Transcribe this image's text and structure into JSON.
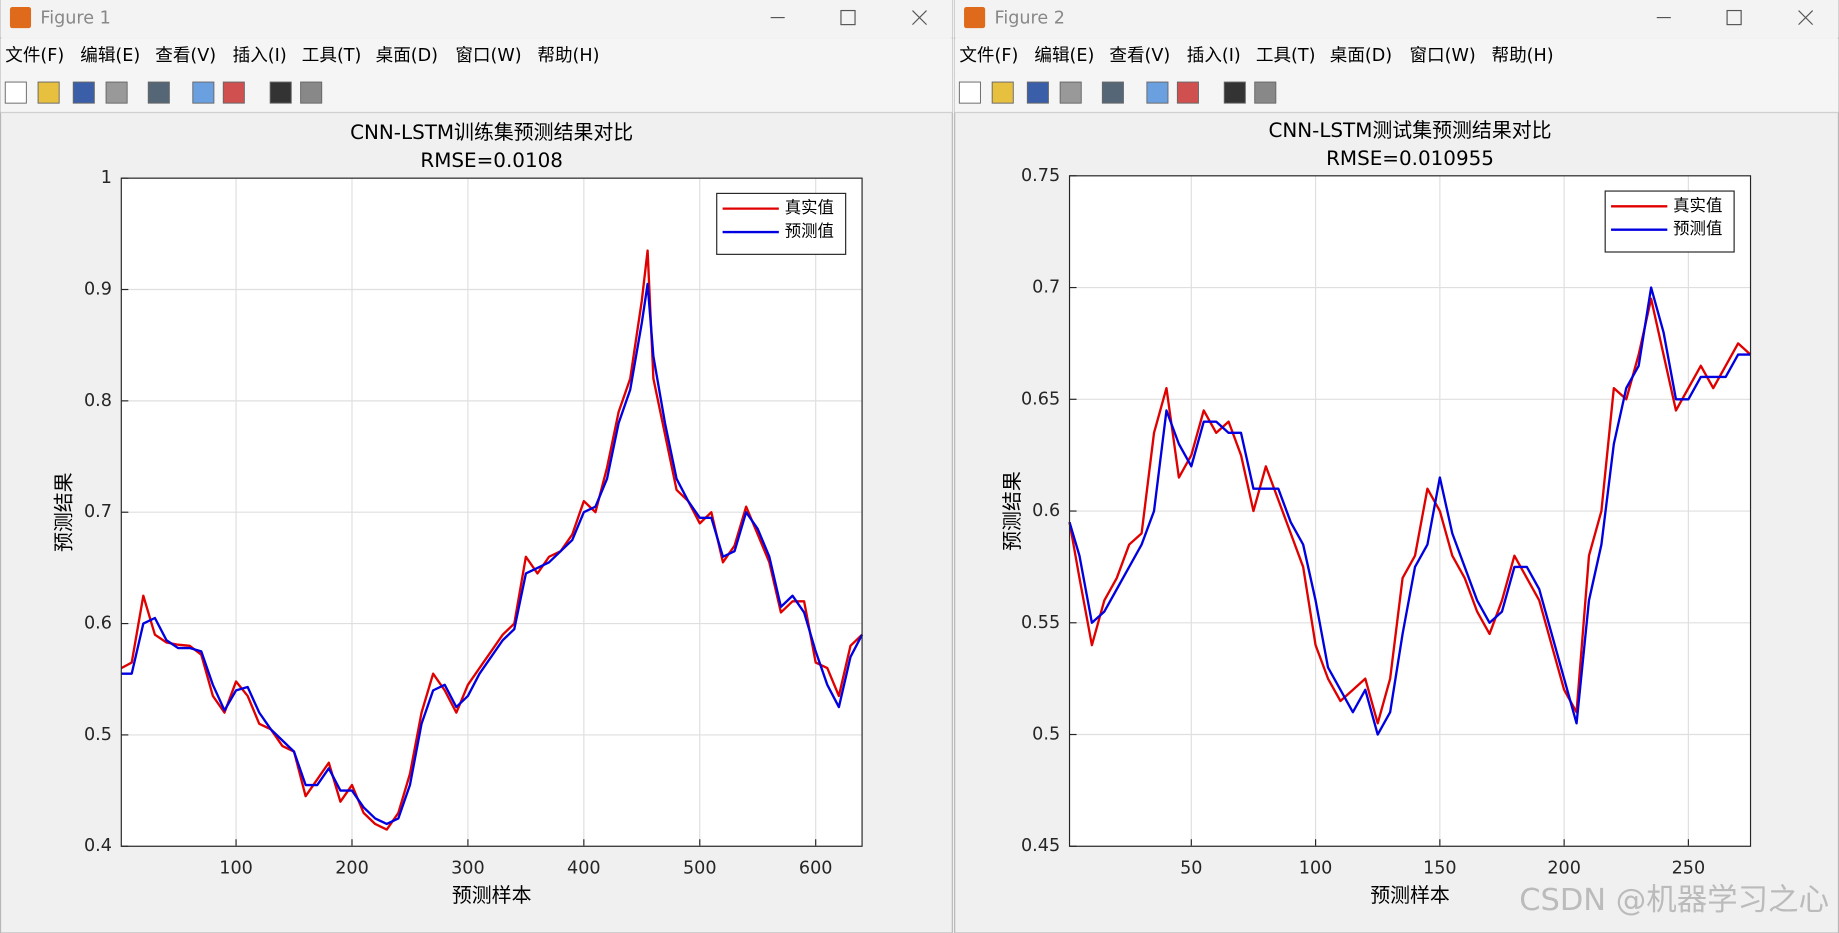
{
  "windows": [
    {
      "title": "Figure 1",
      "menu": [
        "文件(F)",
        "编辑(E)",
        "查看(V)",
        "插入(I)",
        "工具(T)",
        "桌面(D)",
        "窗口(W)",
        "帮助(H)"
      ]
    },
    {
      "title": "Figure 2",
      "menu": [
        "文件(F)",
        "编辑(E)",
        "查看(V)",
        "插入(I)",
        "工具(T)",
        "桌面(D)",
        "窗口(W)",
        "帮助(H)"
      ]
    }
  ],
  "chart_data": [
    {
      "type": "line",
      "title": "CNN-LSTM训练集预测结果对比",
      "subtitle": "RMSE=0.0108",
      "x_label": "预测样本",
      "y_label": "预测结果",
      "x": [
        1,
        10,
        20,
        30,
        40,
        50,
        60,
        70,
        80,
        90,
        100,
        110,
        120,
        130,
        140,
        150,
        160,
        170,
        180,
        190,
        200,
        210,
        220,
        230,
        240,
        250,
        260,
        270,
        280,
        290,
        300,
        310,
        320,
        330,
        340,
        350,
        360,
        370,
        380,
        390,
        400,
        410,
        420,
        430,
        440,
        450,
        455,
        460,
        470,
        480,
        490,
        500,
        510,
        520,
        530,
        540,
        550,
        560,
        570,
        580,
        590,
        600,
        610,
        620,
        630,
        640
      ],
      "series": [
        {
          "name": "真实值",
          "color": "#e00000",
          "values": [
            0.56,
            0.565,
            0.625,
            0.59,
            0.583,
            0.581,
            0.58,
            0.572,
            0.535,
            0.52,
            0.548,
            0.535,
            0.51,
            0.505,
            0.49,
            0.485,
            0.445,
            0.46,
            0.475,
            0.44,
            0.455,
            0.43,
            0.42,
            0.415,
            0.43,
            0.465,
            0.52,
            0.555,
            0.54,
            0.52,
            0.545,
            0.56,
            0.575,
            0.59,
            0.6,
            0.66,
            0.645,
            0.66,
            0.665,
            0.68,
            0.71,
            0.7,
            0.74,
            0.79,
            0.82,
            0.89,
            0.935,
            0.82,
            0.77,
            0.72,
            0.71,
            0.69,
            0.7,
            0.655,
            0.67,
            0.705,
            0.68,
            0.655,
            0.61,
            0.62,
            0.62,
            0.565,
            0.56,
            0.535,
            0.58,
            0.59
          ]
        },
        {
          "name": "预测值",
          "color": "#0000e0",
          "values": [
            0.555,
            0.555,
            0.6,
            0.605,
            0.585,
            0.578,
            0.578,
            0.575,
            0.545,
            0.522,
            0.54,
            0.543,
            0.52,
            0.505,
            0.495,
            0.485,
            0.455,
            0.455,
            0.47,
            0.45,
            0.45,
            0.435,
            0.425,
            0.42,
            0.425,
            0.455,
            0.51,
            0.54,
            0.545,
            0.525,
            0.535,
            0.555,
            0.57,
            0.585,
            0.595,
            0.645,
            0.65,
            0.655,
            0.665,
            0.675,
            0.7,
            0.705,
            0.73,
            0.78,
            0.81,
            0.87,
            0.905,
            0.84,
            0.78,
            0.73,
            0.71,
            0.695,
            0.695,
            0.66,
            0.665,
            0.7,
            0.685,
            0.66,
            0.615,
            0.625,
            0.61,
            0.575,
            0.545,
            0.525,
            0.57,
            0.59
          ]
        }
      ],
      "xlim": [
        1,
        640
      ],
      "xticks": [
        100,
        200,
        300,
        400,
        500,
        600
      ],
      "ylim": [
        0.4,
        1
      ],
      "yticks": [
        0.4,
        0.5,
        0.6,
        0.7,
        0.8,
        0.9,
        1
      ],
      "grid": true,
      "legend": "upper right"
    },
    {
      "type": "line",
      "title": "CNN-LSTM测试集预测结果对比",
      "subtitle": "RMSE=0.010955",
      "x_label": "预测样本",
      "y_label": "预测结果",
      "x": [
        1,
        5,
        10,
        15,
        20,
        25,
        30,
        35,
        40,
        45,
        50,
        55,
        60,
        65,
        70,
        75,
        80,
        85,
        90,
        95,
        100,
        105,
        110,
        115,
        120,
        125,
        130,
        135,
        140,
        145,
        150,
        155,
        160,
        165,
        170,
        175,
        180,
        185,
        190,
        195,
        200,
        205,
        210,
        215,
        220,
        225,
        230,
        235,
        240,
        245,
        250,
        255,
        260,
        265,
        270,
        275
      ],
      "series": [
        {
          "name": "真实值",
          "color": "#e00000",
          "values": [
            0.595,
            0.57,
            0.54,
            0.56,
            0.57,
            0.585,
            0.59,
            0.635,
            0.655,
            0.615,
            0.625,
            0.645,
            0.635,
            0.64,
            0.625,
            0.6,
            0.62,
            0.605,
            0.59,
            0.575,
            0.54,
            0.525,
            0.515,
            0.52,
            0.525,
            0.505,
            0.525,
            0.57,
            0.58,
            0.61,
            0.6,
            0.58,
            0.57,
            0.555,
            0.545,
            0.56,
            0.58,
            0.57,
            0.56,
            0.54,
            0.52,
            0.51,
            0.58,
            0.6,
            0.655,
            0.65,
            0.67,
            0.695,
            0.67,
            0.645,
            0.655,
            0.665,
            0.655,
            0.665,
            0.675,
            0.67
          ]
        },
        {
          "name": "预测值",
          "color": "#0000e0",
          "values": [
            0.595,
            0.58,
            0.55,
            0.555,
            0.565,
            0.575,
            0.585,
            0.6,
            0.645,
            0.63,
            0.62,
            0.64,
            0.64,
            0.635,
            0.635,
            0.61,
            0.61,
            0.61,
            0.595,
            0.585,
            0.56,
            0.53,
            0.52,
            0.51,
            0.52,
            0.5,
            0.51,
            0.545,
            0.575,
            0.585,
            0.615,
            0.59,
            0.575,
            0.56,
            0.55,
            0.555,
            0.575,
            0.575,
            0.565,
            0.545,
            0.525,
            0.505,
            0.56,
            0.585,
            0.63,
            0.655,
            0.665,
            0.7,
            0.68,
            0.65,
            0.65,
            0.66,
            0.66,
            0.66,
            0.67,
            0.67
          ]
        }
      ],
      "xlim": [
        1,
        275
      ],
      "xticks": [
        50,
        100,
        150,
        200,
        250
      ],
      "ylim": [
        0.45,
        0.75
      ],
      "yticks": [
        0.45,
        0.5,
        0.55,
        0.6,
        0.65,
        0.7,
        0.75
      ],
      "grid": true,
      "legend": "upper right"
    }
  ],
  "watermark": "CSDN @机器学习之心"
}
